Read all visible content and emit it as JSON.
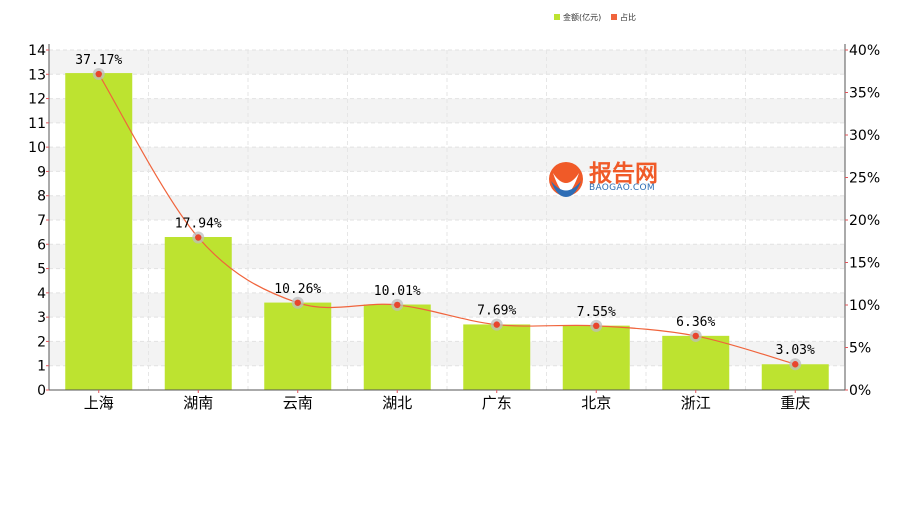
{
  "legend": {
    "amount_label": "金额(亿元)",
    "share_label": "占比"
  },
  "watermark": {
    "brand": "报告网",
    "domain": "BAOGAO.COM"
  },
  "colors": {
    "bar": "#bde330",
    "line": "#f0643c",
    "point_halo": "#bdbdbd",
    "point": "#e8452d"
  },
  "chart_data": {
    "type": "bar",
    "categories": [
      "上海",
      "湖南",
      "云南",
      "湖北",
      "广东",
      "北京",
      "浙江",
      "重庆"
    ],
    "series": [
      {
        "name": "金额(亿元)",
        "type": "bar",
        "axis": "left",
        "values": [
          13.05,
          6.3,
          3.6,
          3.52,
          2.7,
          2.65,
          2.23,
          1.06
        ]
      },
      {
        "name": "占比",
        "type": "line",
        "axis": "right",
        "values": [
          37.17,
          17.94,
          10.26,
          10.01,
          7.69,
          7.55,
          6.36,
          3.03
        ],
        "labels": [
          "37.17%",
          "17.94%",
          "10.26%",
          "10.01%",
          "7.69%",
          "7.55%",
          "6.36%",
          "3.03%"
        ]
      }
    ],
    "y_left": {
      "ylim": [
        0,
        14
      ],
      "ticks": [
        0,
        1,
        2,
        3,
        4,
        5,
        6,
        7,
        8,
        9,
        10,
        11,
        12,
        13,
        14
      ]
    },
    "y_right": {
      "ylim": [
        0,
        40
      ],
      "ticks": [
        "0%",
        "5%",
        "10%",
        "15%",
        "20%",
        "25%",
        "30%",
        "35%",
        "40%"
      ]
    },
    "grid": true,
    "legend_position": "top-right"
  }
}
